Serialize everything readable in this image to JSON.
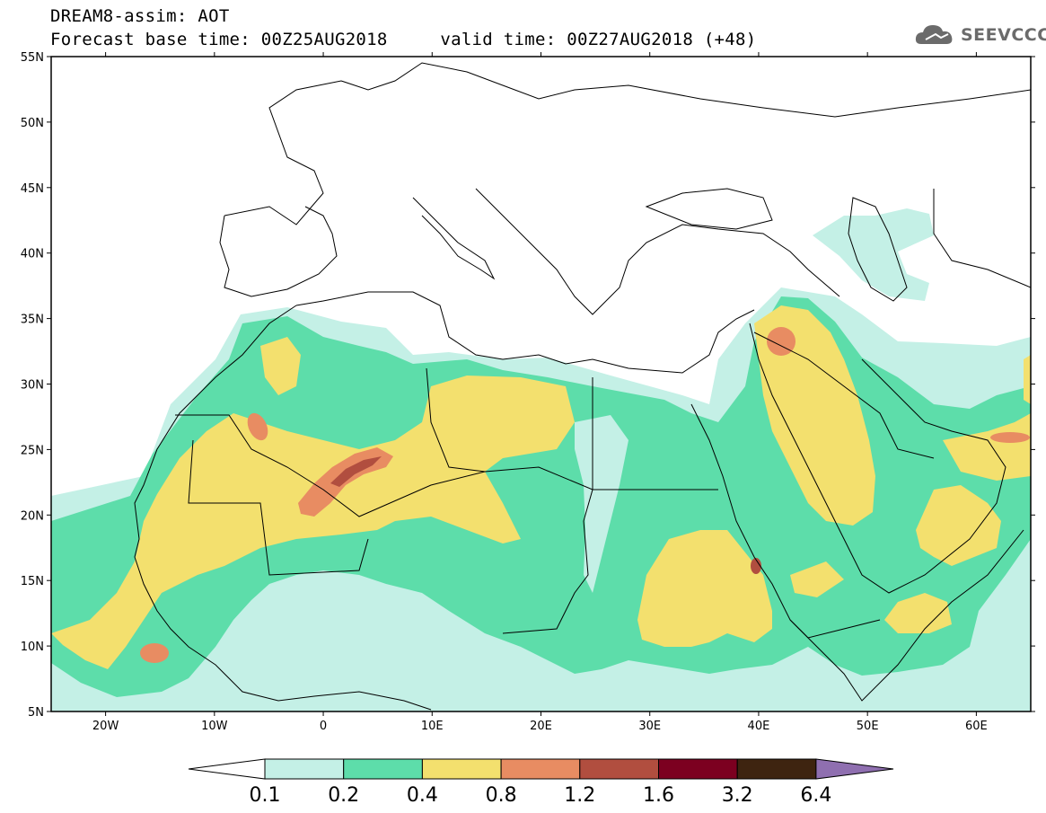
{
  "title": {
    "line1": "DREAM8-assim: AOT",
    "line2": "Forecast base time: 00Z25AUG2018     valid time: 00Z27AUG2018 (+48)"
  },
  "logo": {
    "text": "SEEVCCC",
    "icon": "cloud-icon"
  },
  "map": {
    "lon_range": [
      -25,
      65
    ],
    "lat_range": [
      5,
      55
    ],
    "lat_labels": [
      "55N",
      "50N",
      "45N",
      "40N",
      "35N",
      "30N",
      "25N",
      "20N",
      "15N",
      "10N",
      "5N"
    ],
    "lon_labels": [
      "20W",
      "10W",
      "0",
      "10E",
      "20E",
      "30E",
      "40E",
      "50E",
      "60E"
    ]
  },
  "colorbar": {
    "labels": [
      "0.1",
      "0.2",
      "0.4",
      "0.8",
      "1.2",
      "1.6",
      "3.2",
      "6.4"
    ],
    "colors": [
      "#c4f0e6",
      "#5dddaa",
      "#f3e06e",
      "#e88c62",
      "#b14e3f",
      "#7c0020",
      "#3e2410",
      "#8f6fb0"
    ],
    "below_color": "#ffffff"
  },
  "colors": {
    "c01": "#c4f0e6",
    "c02": "#5dddaa",
    "c04": "#f3e06e",
    "c08": "#e88c62",
    "c12": "#b14e3f"
  }
}
